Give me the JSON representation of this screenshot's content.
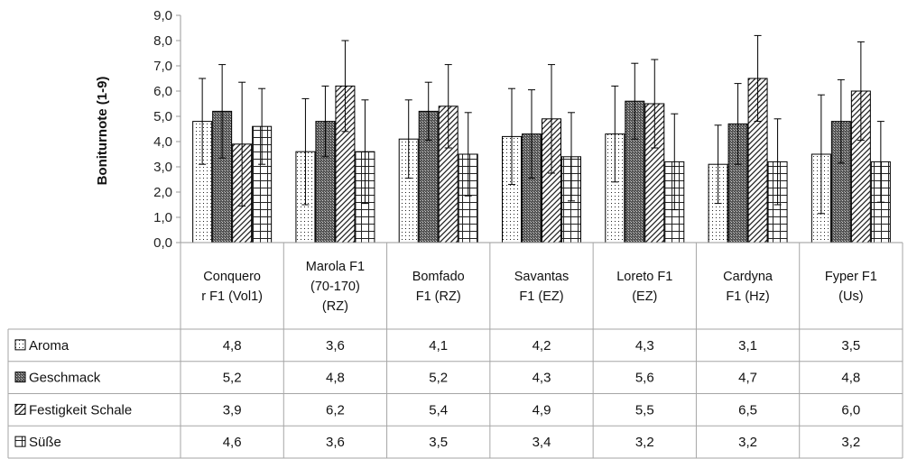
{
  "chart_data": {
    "type": "bar",
    "ylabel": "Boniturnote (1-9)",
    "ylim": [
      0,
      9
    ],
    "ytick_step": 1,
    "ytick_labels": [
      "0,0",
      "1,0",
      "2,0",
      "3,0",
      "4,0",
      "5,0",
      "6,0",
      "7,0",
      "8,0",
      "9,0"
    ],
    "grid": false,
    "legend_placement": "data-table",
    "categories": [
      [
        "Conquero",
        "r F1 (Vol1)"
      ],
      [
        "Marola F1",
        "(70-170)",
        "(RZ)"
      ],
      [
        "Bomfado",
        "F1 (RZ)"
      ],
      [
        "Savantas",
        "F1 (EZ)"
      ],
      [
        "Loreto F1",
        "(EZ)"
      ],
      [
        "Cardyna",
        "F1 (Hz)"
      ],
      [
        "Fyper F1",
        "(Us)"
      ]
    ],
    "series": [
      {
        "name": "Aroma",
        "pattern": "dots",
        "values": [
          4.8,
          3.6,
          4.1,
          4.2,
          4.3,
          3.1,
          3.5
        ],
        "labels": [
          "4,8",
          "3,6",
          "4,1",
          "4,2",
          "4,3",
          "3,1",
          "3,5"
        ],
        "err": [
          1.7,
          2.1,
          1.55,
          1.9,
          1.9,
          1.55,
          2.35
        ]
      },
      {
        "name": "Geschmack",
        "pattern": "dense",
        "values": [
          5.2,
          4.8,
          5.2,
          4.3,
          5.6,
          4.7,
          4.8
        ],
        "labels": [
          "5,2",
          "4,8",
          "5,2",
          "4,3",
          "5,6",
          "4,7",
          "4,8"
        ],
        "err": [
          1.85,
          1.4,
          1.15,
          1.75,
          1.5,
          1.6,
          1.65
        ]
      },
      {
        "name": "Festigkeit Schale",
        "pattern": "diagonal",
        "values": [
          3.9,
          6.2,
          5.4,
          4.9,
          5.5,
          6.5,
          6.0
        ],
        "labels": [
          "3,9",
          "6,2",
          "5,4",
          "4,9",
          "5,5",
          "6,5",
          "6,0"
        ],
        "err": [
          2.45,
          1.8,
          1.65,
          2.15,
          1.75,
          1.7,
          1.95
        ]
      },
      {
        "name": "Süße",
        "pattern": "grid",
        "values": [
          4.6,
          3.6,
          3.5,
          3.4,
          3.2,
          3.2,
          3.2
        ],
        "labels": [
          "4,6",
          "3,6",
          "3,5",
          "3,4",
          "3,2",
          "3,2",
          "3,2"
        ],
        "err": [
          1.5,
          2.05,
          1.65,
          1.75,
          1.9,
          1.7,
          1.6
        ]
      }
    ]
  }
}
